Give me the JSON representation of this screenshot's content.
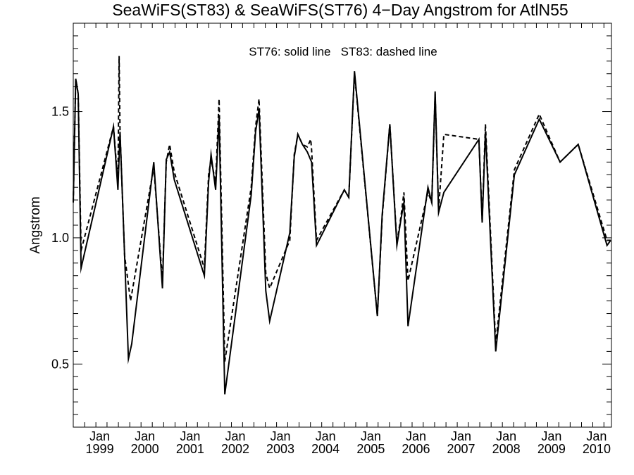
{
  "chart_data": {
    "type": "line",
    "title": "SeaWiFS(ST83) & SeaWiFS(ST76) 4−Day Angstrom for AtlN55",
    "annotation": "ST76: solid line   ST83: dashed line",
    "xlabel": "",
    "ylabel": "Angstrom",
    "xlim": [
      "1998-06-01",
      "2010-05-01"
    ],
    "ylim": [
      0.25,
      1.85
    ],
    "grid": false,
    "x_ticks": [
      {
        "date": "1999-01-01",
        "month": "Jan",
        "year": "1999"
      },
      {
        "date": "2000-01-01",
        "month": "Jan",
        "year": "2000"
      },
      {
        "date": "2001-01-01",
        "month": "Jan",
        "year": "2001"
      },
      {
        "date": "2002-01-01",
        "month": "Jan",
        "year": "2002"
      },
      {
        "date": "2003-01-01",
        "month": "Jan",
        "year": "2003"
      },
      {
        "date": "2004-01-01",
        "month": "Jan",
        "year": "2004"
      },
      {
        "date": "2005-01-01",
        "month": "Jan",
        "year": "2005"
      },
      {
        "date": "2006-01-01",
        "month": "Jan",
        "year": "2006"
      },
      {
        "date": "2007-01-01",
        "month": "Jan",
        "year": "2007"
      },
      {
        "date": "2008-01-01",
        "month": "Jan",
        "year": "2008"
      },
      {
        "date": "2009-01-01",
        "month": "Jan",
        "year": "2009"
      },
      {
        "date": "2010-01-01",
        "month": "Jan",
        "year": "2010"
      }
    ],
    "y_ticks": [
      {
        "value": 0.5,
        "label": "0.5"
      },
      {
        "value": 1.0,
        "label": "1.0"
      },
      {
        "value": 1.5,
        "label": "1.5"
      }
    ],
    "series": [
      {
        "style": "solid",
        "points": [
          [
            "1998-06-01",
            1.14
          ],
          [
            "1998-06-21",
            1.63
          ],
          [
            "1998-07-11",
            1.57
          ],
          [
            "1998-08-03",
            0.88
          ],
          [
            "1999-04-22",
            1.44
          ],
          [
            "1999-05-28",
            1.19
          ],
          [
            "1999-06-14",
            1.42
          ],
          [
            "1999-08-21",
            0.52
          ],
          [
            "1999-09-17",
            0.58
          ],
          [
            "2000-03-13",
            1.3
          ],
          [
            "2000-05-22",
            0.8
          ],
          [
            "2000-06-22",
            1.31
          ],
          [
            "2000-07-19",
            1.34
          ],
          [
            "2000-08-26",
            1.23
          ],
          [
            "2001-04-26",
            0.85
          ],
          [
            "2001-05-30",
            1.22
          ],
          [
            "2001-06-19",
            1.33
          ],
          [
            "2001-07-26",
            1.19
          ],
          [
            "2001-08-23",
            1.48
          ],
          [
            "2001-10-08",
            0.38
          ],
          [
            "2002-05-10",
            1.17
          ],
          [
            "2002-06-14",
            1.42
          ],
          [
            "2002-07-12",
            1.51
          ],
          [
            "2002-09-05",
            0.79
          ],
          [
            "2002-10-06",
            0.67
          ],
          [
            "2003-03-18",
            1.02
          ],
          [
            "2003-04-23",
            1.32
          ],
          [
            "2003-05-22",
            1.41
          ],
          [
            "2003-06-28",
            1.37
          ],
          [
            "2003-08-07",
            1.34
          ],
          [
            "2003-09-10",
            1.3
          ],
          [
            "2003-10-20",
            0.97
          ],
          [
            "2004-06-01",
            1.19
          ],
          [
            "2004-07-07",
            1.16
          ],
          [
            "2004-08-22",
            1.66
          ],
          [
            "2005-02-23",
            0.69
          ],
          [
            "2005-04-03",
            1.09
          ],
          [
            "2005-06-04",
            1.45
          ],
          [
            "2005-07-31",
            0.97
          ],
          [
            "2005-09-01",
            1.07
          ],
          [
            "2005-09-26",
            1.14
          ],
          [
            "2005-10-29",
            0.65
          ],
          [
            "2006-04-08",
            1.2
          ],
          [
            "2006-05-09",
            1.14
          ],
          [
            "2006-06-05",
            1.58
          ],
          [
            "2006-07-03",
            1.1
          ],
          [
            "2006-07-24",
            1.14
          ],
          [
            "2006-08-15",
            1.18
          ],
          [
            "2007-05-25",
            1.39
          ],
          [
            "2007-06-21",
            1.06
          ],
          [
            "2007-07-17",
            1.42
          ],
          [
            "2007-10-08",
            0.55
          ],
          [
            "2008-03-07",
            1.25
          ],
          [
            "2008-09-24",
            1.47
          ],
          [
            "2009-03-12",
            1.3
          ],
          [
            "2009-08-05",
            1.37
          ],
          [
            "2010-03-26",
            0.97
          ],
          [
            "2010-04-25",
            0.99
          ]
        ]
      },
      {
        "style": "dashed",
        "points": [
          [
            "1998-06-01",
            1.14
          ],
          [
            "1998-06-21",
            1.63
          ],
          [
            "1998-07-11",
            1.57
          ],
          [
            "1998-08-03",
            0.95
          ],
          [
            "1999-04-22",
            1.44
          ],
          [
            "1999-05-28",
            1.22
          ],
          [
            "1999-06-07",
            1.72
          ],
          [
            "1999-06-14",
            1.42
          ],
          [
            "1999-07-21",
            0.93
          ],
          [
            "1999-09-07",
            0.75
          ],
          [
            "2000-03-13",
            1.28
          ],
          [
            "2000-05-22",
            0.83
          ],
          [
            "2000-06-22",
            1.3
          ],
          [
            "2000-07-19",
            1.37
          ],
          [
            "2000-08-26",
            1.26
          ],
          [
            "2001-04-26",
            0.88
          ],
          [
            "2001-05-30",
            1.25
          ],
          [
            "2001-06-19",
            1.31
          ],
          [
            "2001-07-26",
            1.22
          ],
          [
            "2001-08-23",
            1.55
          ],
          [
            "2001-10-08",
            0.51
          ],
          [
            "2002-05-10",
            1.2
          ],
          [
            "2002-06-14",
            1.44
          ],
          [
            "2002-07-12",
            1.55
          ],
          [
            "2002-09-05",
            0.86
          ],
          [
            "2002-10-06",
            0.8
          ],
          [
            "2003-03-18",
            0.99
          ],
          [
            "2003-04-23",
            1.33
          ],
          [
            "2003-05-22",
            1.41
          ],
          [
            "2003-06-28",
            1.37
          ],
          [
            "2003-08-07",
            1.36
          ],
          [
            "2003-09-03",
            1.39
          ],
          [
            "2003-09-10",
            1.35
          ],
          [
            "2003-10-20",
            0.99
          ],
          [
            "2004-06-01",
            1.19
          ],
          [
            "2004-07-07",
            1.16
          ],
          [
            "2004-08-22",
            1.65
          ],
          [
            "2005-02-23",
            0.69
          ],
          [
            "2005-04-03",
            1.08
          ],
          [
            "2005-06-04",
            1.45
          ],
          [
            "2005-07-31",
            0.98
          ],
          [
            "2005-09-01",
            1.08
          ],
          [
            "2005-09-26",
            1.18
          ],
          [
            "2005-10-29",
            0.83
          ],
          [
            "2006-04-08",
            1.18
          ],
          [
            "2006-05-09",
            1.14
          ],
          [
            "2006-06-05",
            1.57
          ],
          [
            "2006-07-03",
            1.11
          ],
          [
            "2006-08-15",
            1.41
          ],
          [
            "2007-05-25",
            1.39
          ],
          [
            "2007-06-21",
            1.07
          ],
          [
            "2007-07-17",
            1.45
          ],
          [
            "2007-10-08",
            0.58
          ],
          [
            "2008-03-07",
            1.27
          ],
          [
            "2008-09-24",
            1.49
          ],
          [
            "2009-03-12",
            1.3
          ],
          [
            "2009-08-05",
            1.37
          ],
          [
            "2010-03-26",
            0.99
          ],
          [
            "2010-04-25",
            0.99
          ]
        ]
      }
    ]
  }
}
